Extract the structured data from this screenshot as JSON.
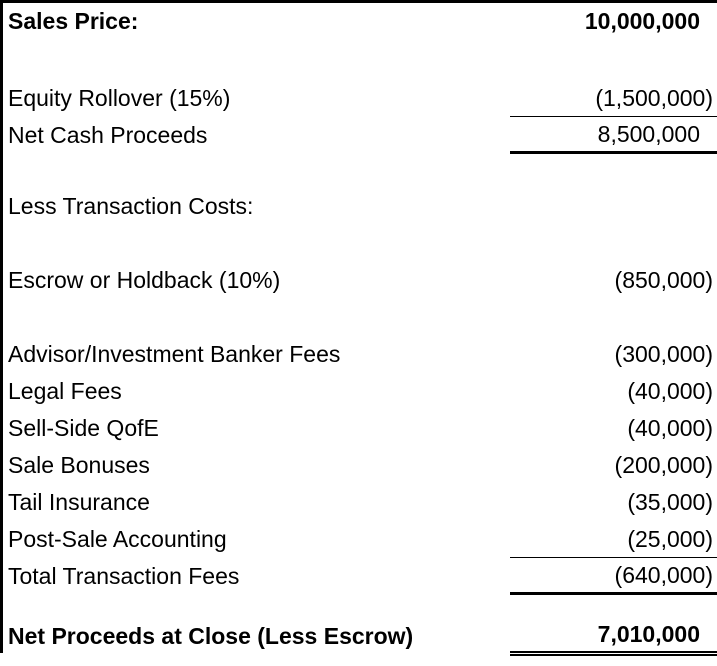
{
  "colors": {
    "text": "#000000",
    "background": "#ffffff",
    "frame_border": "#000000"
  },
  "table": {
    "rows": [
      {
        "type": "item",
        "label": "Sales Price:",
        "value": "10,000,000",
        "bold": true,
        "rule": "none",
        "paren": false,
        "height": 37
      },
      {
        "type": "spacer",
        "height": 40
      },
      {
        "type": "item",
        "label": "Equity Rollover (15%)",
        "value": "(1,500,000)",
        "bold": false,
        "rule": "thin",
        "paren": true,
        "height": 37
      },
      {
        "type": "item",
        "label": "Net Cash Proceeds",
        "value": "8,500,000",
        "bold": false,
        "rule": "thick",
        "paren": false,
        "height": 37
      },
      {
        "type": "spacer",
        "height": 34
      },
      {
        "type": "item",
        "label": "Less Transaction Costs:",
        "value": "",
        "bold": false,
        "rule": "none",
        "paren": false,
        "height": 37
      },
      {
        "type": "spacer",
        "height": 37
      },
      {
        "type": "item",
        "label": "Escrow or Holdback (10%)",
        "value": "(850,000)",
        "bold": false,
        "rule": "none",
        "paren": true,
        "height": 37
      },
      {
        "type": "spacer",
        "height": 37
      },
      {
        "type": "item",
        "label": "Advisor/Investment Banker Fees",
        "value": "(300,000)",
        "bold": false,
        "rule": "none",
        "paren": true,
        "height": 37
      },
      {
        "type": "item",
        "label": "Legal Fees",
        "value": "(40,000)",
        "bold": false,
        "rule": "none",
        "paren": true,
        "height": 37
      },
      {
        "type": "item",
        "label": "Sell-Side QofE",
        "value": "(40,000)",
        "bold": false,
        "rule": "none",
        "paren": true,
        "height": 37
      },
      {
        "type": "item",
        "label": "Sale Bonuses",
        "value": "(200,000)",
        "bold": false,
        "rule": "none",
        "paren": true,
        "height": 37
      },
      {
        "type": "item",
        "label": "Tail Insurance",
        "value": "(35,000)",
        "bold": false,
        "rule": "none",
        "paren": true,
        "height": 37
      },
      {
        "type": "item",
        "label": "Post-Sale Accounting",
        "value": "(25,000)",
        "bold": false,
        "rule": "thin",
        "paren": true,
        "height": 37
      },
      {
        "type": "item",
        "label": "Total Transaction Fees",
        "value": "(640,000)",
        "bold": false,
        "rule": "thick",
        "paren": true,
        "height": 37
      },
      {
        "type": "spacer",
        "height": 22
      },
      {
        "type": "item",
        "label": "Net Proceeds at Close (Less Escrow)",
        "value": "7,010,000",
        "bold": true,
        "rule": "double",
        "paren": false,
        "height": 39
      }
    ]
  }
}
